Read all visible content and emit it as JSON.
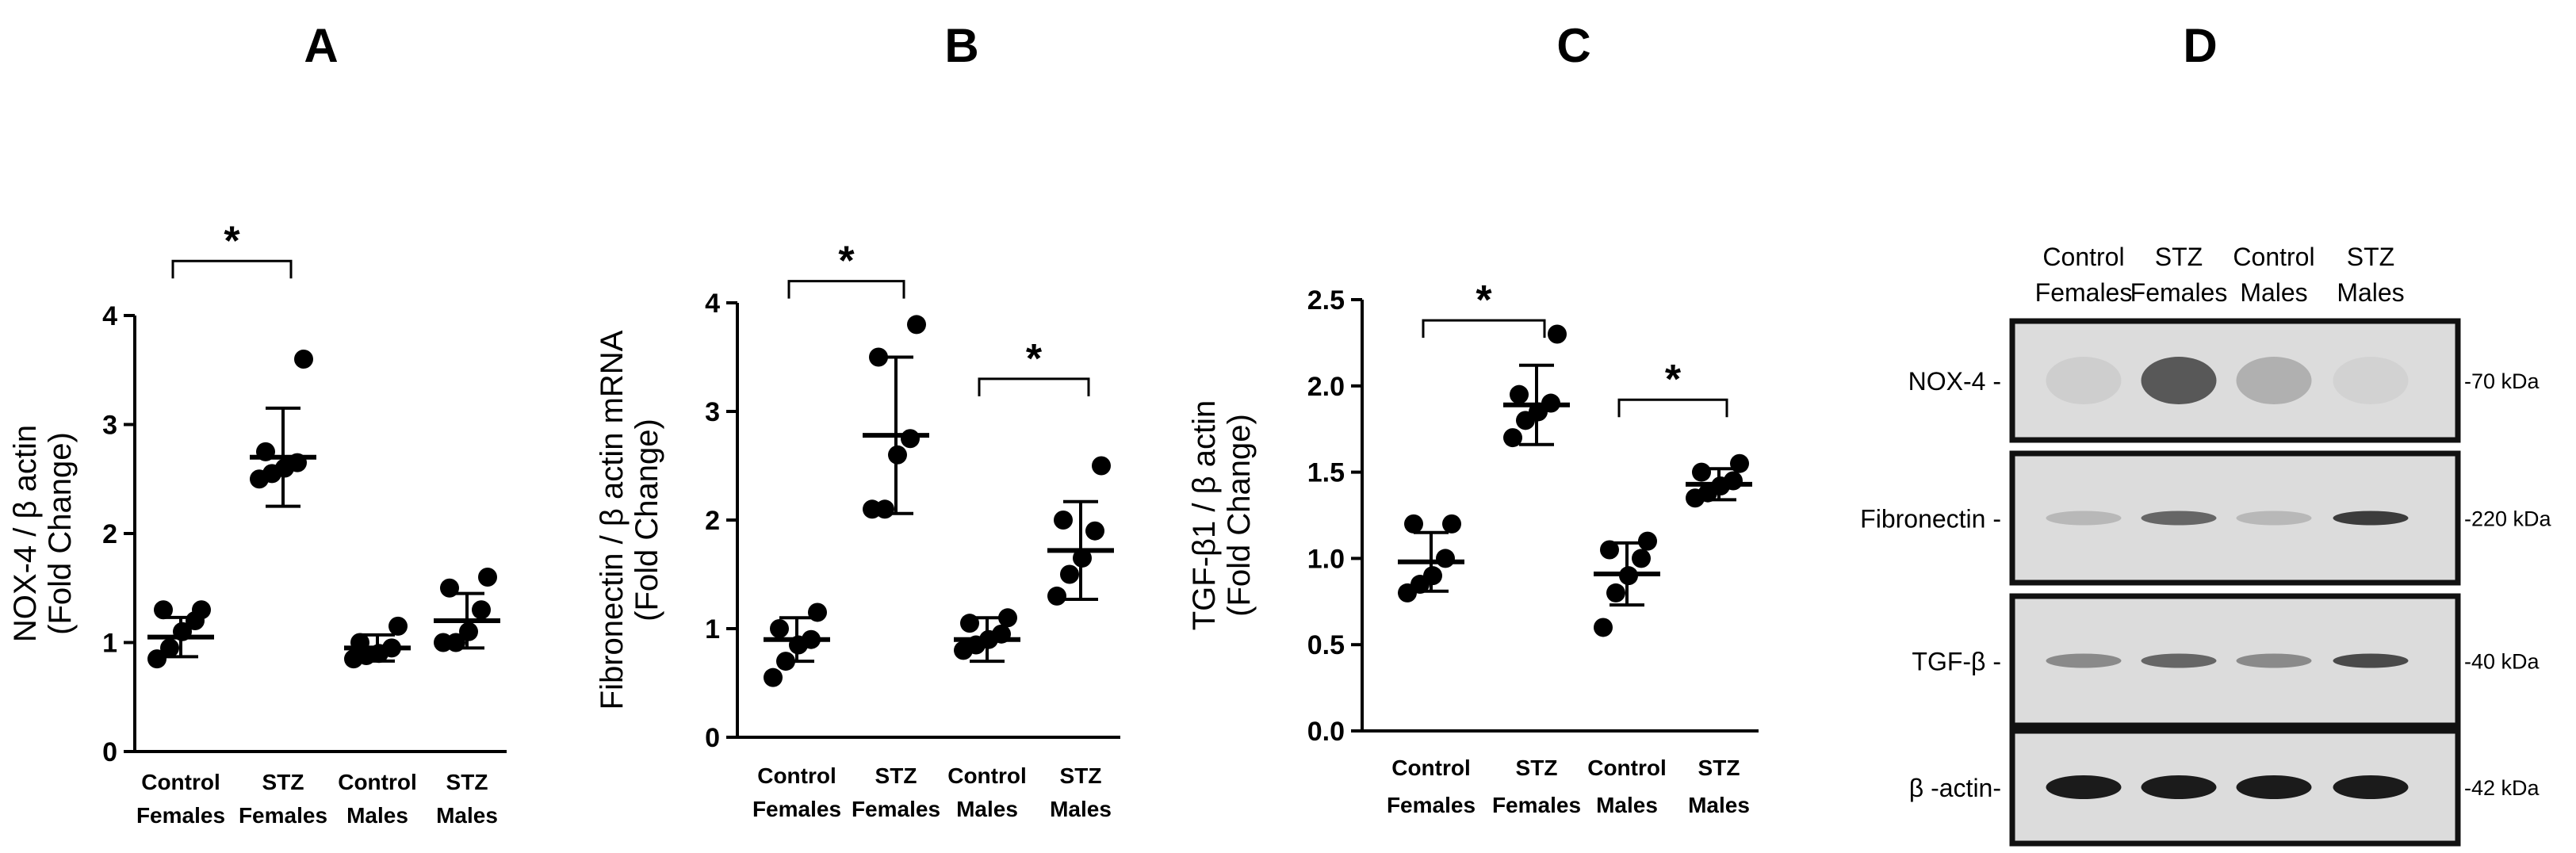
{
  "panels": [
    "A",
    "B",
    "C",
    "D"
  ],
  "chart_data": [
    {
      "type": "scatter",
      "panel": "A",
      "ylabel_line1": "NOX-4 / β actin",
      "ylabel_line2": "(Fold Change)",
      "ylim": [
        0,
        4
      ],
      "yticks": [
        0,
        1,
        2,
        3,
        4
      ],
      "categories": [
        {
          "line1": "Control",
          "line2": "Females"
        },
        {
          "line1": "STZ",
          "line2": "Females"
        },
        {
          "line1": "Control",
          "line2": "Males"
        },
        {
          "line1": "STZ",
          "line2": "Males"
        }
      ],
      "series": [
        {
          "name": "Control Females",
          "points": [
            0.85,
            0.95,
            1.1,
            1.2,
            1.3,
            1.3
          ],
          "mean": 1.05,
          "sd": 0.18
        },
        {
          "name": "STZ Females",
          "points": [
            2.5,
            2.55,
            2.6,
            2.65,
            2.75,
            3.6
          ],
          "mean": 2.7,
          "sd": 0.45
        },
        {
          "name": "Control Males",
          "points": [
            0.85,
            0.88,
            0.9,
            0.95,
            1.0,
            1.15
          ],
          "mean": 0.95,
          "sd": 0.12
        },
        {
          "name": "STZ Males",
          "points": [
            1.0,
            1.0,
            1.1,
            1.3,
            1.5,
            1.6
          ],
          "mean": 1.2,
          "sd": 0.25
        }
      ],
      "significance": [
        {
          "from": 0,
          "to": 1,
          "y": 4.5,
          "label": "*"
        }
      ]
    },
    {
      "type": "scatter",
      "panel": "B",
      "ylabel_line1": "Fibronectin / β actin mRNA",
      "ylabel_line2": "(Fold Change)",
      "ylim": [
        0,
        4
      ],
      "yticks": [
        0,
        1,
        2,
        3,
        4
      ],
      "categories": [
        {
          "line1": "Control",
          "line2": "Females"
        },
        {
          "line1": "STZ",
          "line2": "Females"
        },
        {
          "line1": "Control",
          "line2": "Males"
        },
        {
          "line1": "STZ",
          "line2": "Males"
        }
      ],
      "series": [
        {
          "name": "Control Females",
          "points": [
            0.55,
            0.7,
            0.85,
            0.9,
            1.0,
            1.15
          ],
          "mean": 0.9,
          "sd": 0.2
        },
        {
          "name": "STZ Females",
          "points": [
            2.1,
            2.1,
            2.6,
            2.75,
            3.5,
            3.8
          ],
          "mean": 2.78,
          "sd": 0.72
        },
        {
          "name": "Control Males",
          "points": [
            0.8,
            0.85,
            0.9,
            0.95,
            1.05,
            1.1
          ],
          "mean": 0.9,
          "sd": 0.2
        },
        {
          "name": "STZ Males",
          "points": [
            1.3,
            1.5,
            1.65,
            1.9,
            2.0,
            2.5
          ],
          "mean": 1.72,
          "sd": 0.45
        }
      ],
      "significance": [
        {
          "from": 0,
          "to": 1,
          "y": 4.2,
          "label": "*"
        },
        {
          "from": 2,
          "to": 3,
          "y": 3.3,
          "label": "*"
        }
      ]
    },
    {
      "type": "scatter",
      "panel": "C",
      "ylabel_line1": "TGF-β1 / β actin",
      "ylabel_line2": "(Fold Change)",
      "ylim": [
        0,
        2.5
      ],
      "yticks": [
        0.0,
        0.5,
        1.0,
        1.5,
        2.0,
        2.5
      ],
      "ytick_labels": [
        "0.0",
        "0.5",
        "1.0",
        "1.5",
        "2.0",
        "2.5"
      ],
      "categories": [
        {
          "line1": "Control",
          "line2": "Females"
        },
        {
          "line1": "STZ",
          "line2": "Females"
        },
        {
          "line1": "Control",
          "line2": "Males"
        },
        {
          "line1": "STZ",
          "line2": "Males"
        }
      ],
      "series": [
        {
          "name": "Control Females",
          "points": [
            0.8,
            0.85,
            0.9,
            1.0,
            1.2,
            1.2
          ],
          "mean": 0.98,
          "sd": 0.17
        },
        {
          "name": "STZ Females",
          "points": [
            1.7,
            1.8,
            1.85,
            1.9,
            1.95,
            2.3
          ],
          "mean": 1.89,
          "sd": 0.23
        },
        {
          "name": "Control Males",
          "points": [
            0.6,
            0.8,
            0.9,
            1.0,
            1.05,
            1.1
          ],
          "mean": 0.91,
          "sd": 0.18
        },
        {
          "name": "STZ Males",
          "points": [
            1.35,
            1.38,
            1.42,
            1.45,
            1.5,
            1.55
          ],
          "mean": 1.43,
          "sd": 0.09
        }
      ],
      "significance": [
        {
          "from": 0,
          "to": 1,
          "y": 2.38,
          "label": "*"
        },
        {
          "from": 2,
          "to": 3,
          "y": 1.92,
          "label": "*"
        }
      ]
    }
  ],
  "blot": {
    "lanes": [
      {
        "line1": "Control",
        "line2": "Females"
      },
      {
        "line1": "STZ",
        "line2": "Females"
      },
      {
        "line1": "Control",
        "line2": "Males"
      },
      {
        "line1": "STZ",
        "line2": "Males"
      }
    ],
    "rows": [
      {
        "label": "NOX-4 -",
        "kda": "-70 kDa",
        "intensity": [
          0.12,
          0.75,
          0.35,
          0.08
        ]
      },
      {
        "label": "Fibronectin -",
        "kda": "-220 kDa",
        "intensity": [
          0.3,
          0.7,
          0.3,
          0.85
        ]
      },
      {
        "label": "TGF-β -",
        "kda": "-40 kDa",
        "intensity": [
          0.55,
          0.7,
          0.55,
          0.8
        ]
      },
      {
        "label": "β -actin-",
        "kda": "-42 kDa",
        "intensity": [
          0.95,
          0.95,
          0.95,
          0.95
        ]
      }
    ]
  }
}
